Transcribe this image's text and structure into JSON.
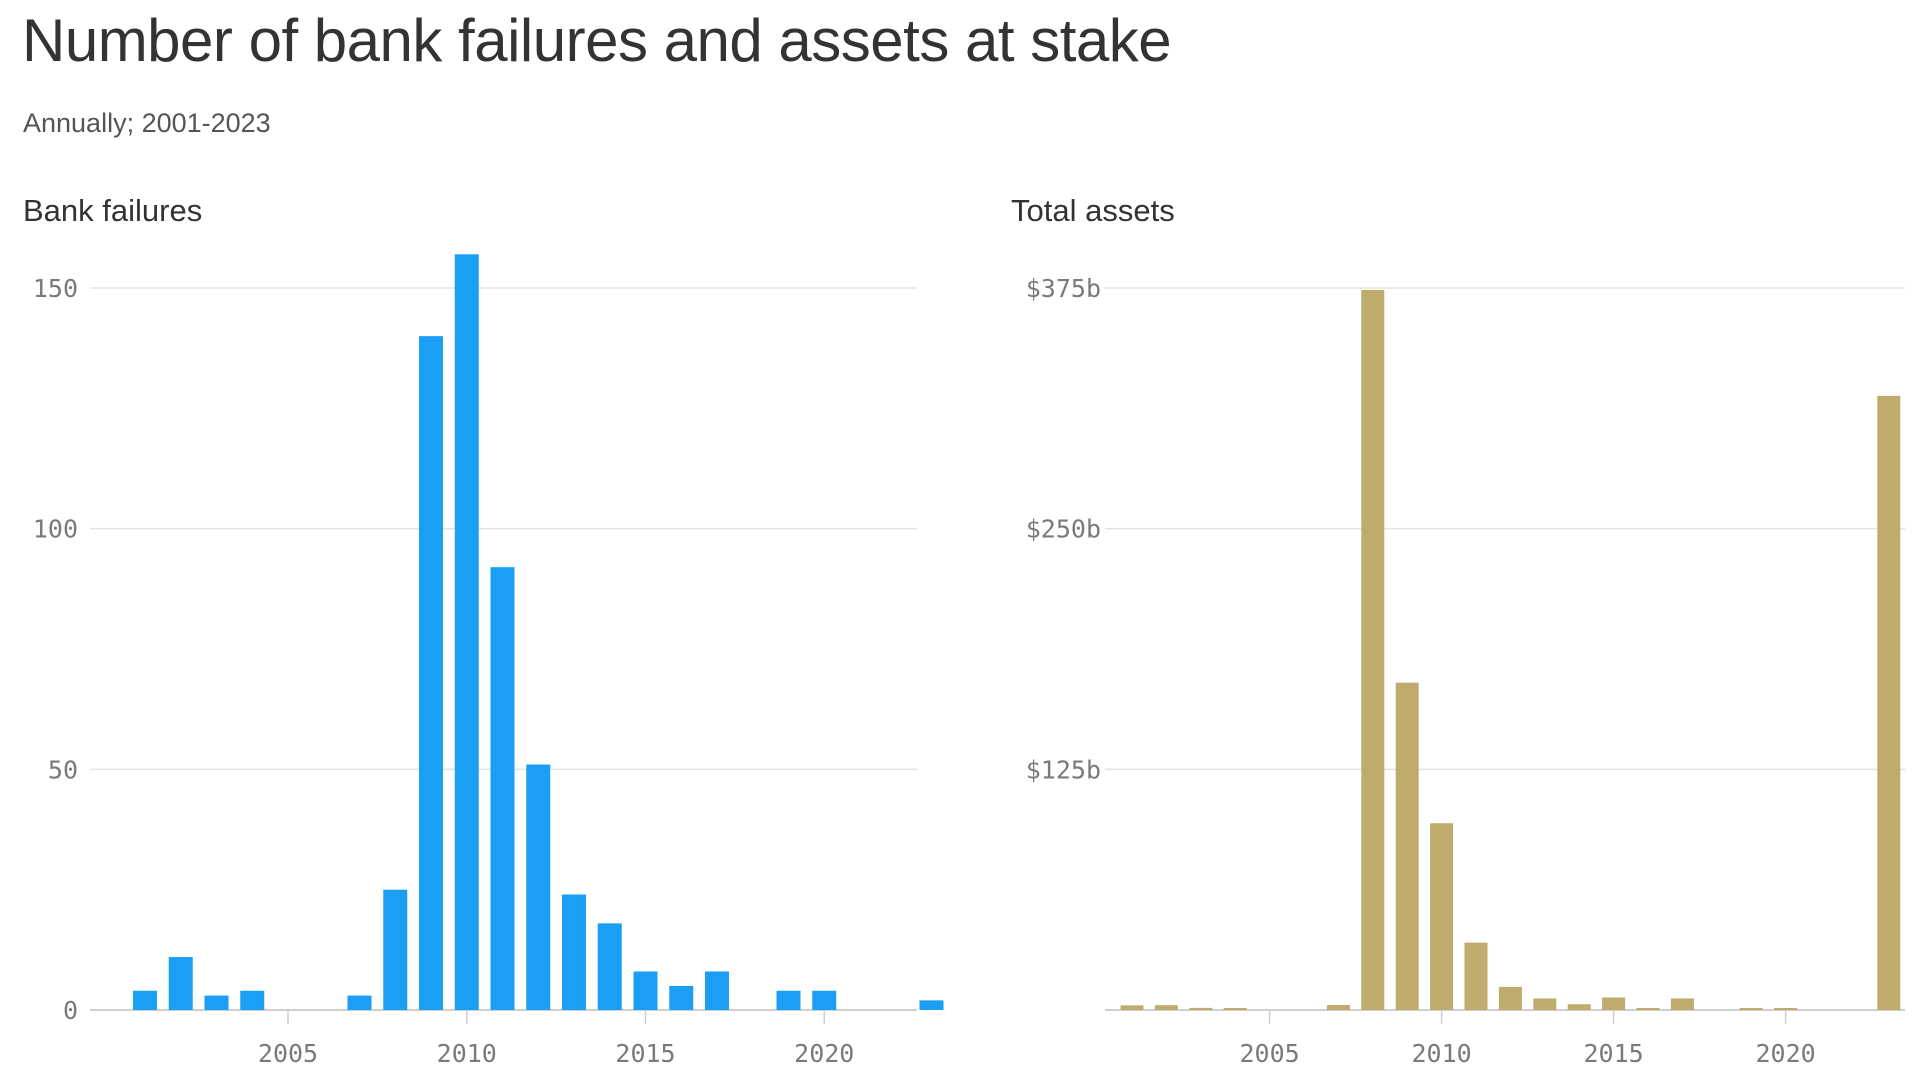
{
  "title": "Number of bank failures and assets at stake",
  "subtitle": "Annually; 2001-2023",
  "colors": {
    "failures_bar": "#1a9ff5",
    "assets_bar": "#bfab6b",
    "gridline": "#e3e3e3",
    "axis_text": "#7a7a7a"
  },
  "chart_data": [
    {
      "type": "bar",
      "title": "Bank failures",
      "x": [
        2001,
        2002,
        2003,
        2004,
        2005,
        2006,
        2007,
        2008,
        2009,
        2010,
        2011,
        2012,
        2013,
        2014,
        2015,
        2016,
        2017,
        2018,
        2019,
        2020,
        2021,
        2022,
        2023
      ],
      "values": [
        4,
        11,
        3,
        4,
        0,
        0,
        3,
        25,
        140,
        157,
        92,
        51,
        24,
        18,
        8,
        5,
        8,
        0,
        4,
        4,
        0,
        0,
        2
      ],
      "ylim": [
        0,
        150
      ],
      "yticks": [
        0,
        50,
        100,
        150
      ],
      "ytick_labels": [
        "0",
        "50",
        "100",
        "150"
      ],
      "xticks": [
        2005,
        2010,
        2015,
        2020
      ],
      "xtick_labels": [
        "2005",
        "2010",
        "2015",
        "2020"
      ],
      "grid": true
    },
    {
      "type": "bar",
      "title": "Total assets",
      "x": [
        2001,
        2002,
        2003,
        2004,
        2005,
        2006,
        2007,
        2008,
        2009,
        2010,
        2011,
        2012,
        2013,
        2014,
        2015,
        2016,
        2017,
        2018,
        2019,
        2020,
        2021,
        2022,
        2023
      ],
      "values": [
        2.4,
        2.5,
        1.1,
        0.2,
        0,
        0,
        2.6,
        374,
        170,
        97,
        35,
        12,
        6,
        3,
        6.5,
        0.3,
        6,
        0,
        0.2,
        0.5,
        0,
        0,
        319
      ],
      "ylim": [
        0,
        375
      ],
      "yticks": [
        0,
        125,
        250,
        375
      ],
      "ytick_labels": [
        "",
        "$125b",
        "$250b",
        "$375b"
      ],
      "xticks": [
        2005,
        2010,
        2015,
        2020
      ],
      "xtick_labels": [
        "2005",
        "2010",
        "2015",
        "2020"
      ],
      "grid": true
    }
  ]
}
